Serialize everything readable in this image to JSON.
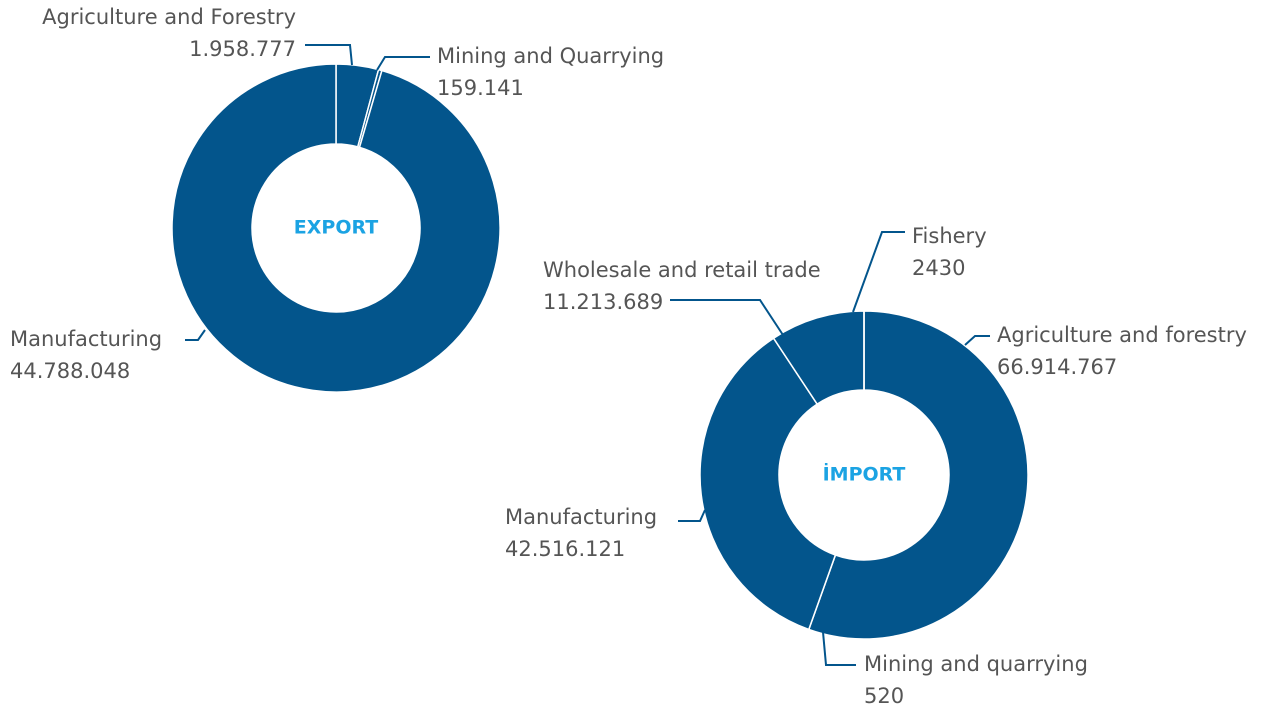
{
  "chart_data": [
    {
      "type": "pie",
      "donut": true,
      "title": "EXPORT",
      "color": "#03558c",
      "categories": [
        "Agriculture and Forestry",
        "Mining and Quarrying",
        "Manufacturing"
      ],
      "values": [
        1958777,
        159141,
        44788048
      ],
      "value_labels": [
        "1.958.777",
        "159.141",
        "44.788.048"
      ]
    },
    {
      "type": "pie",
      "donut": true,
      "title": "İMPORT",
      "color": "#03558c",
      "categories": [
        "Agriculture and forestry",
        "Mining and quarrying",
        "Manufacturing",
        "Wholesale and retail trade",
        "Fishery"
      ],
      "values": [
        66914767,
        520,
        42516121,
        11213689,
        2430
      ],
      "value_labels": [
        "66.914.767",
        "520",
        "42.516.121",
        "11.213.689",
        "2430"
      ]
    }
  ]
}
